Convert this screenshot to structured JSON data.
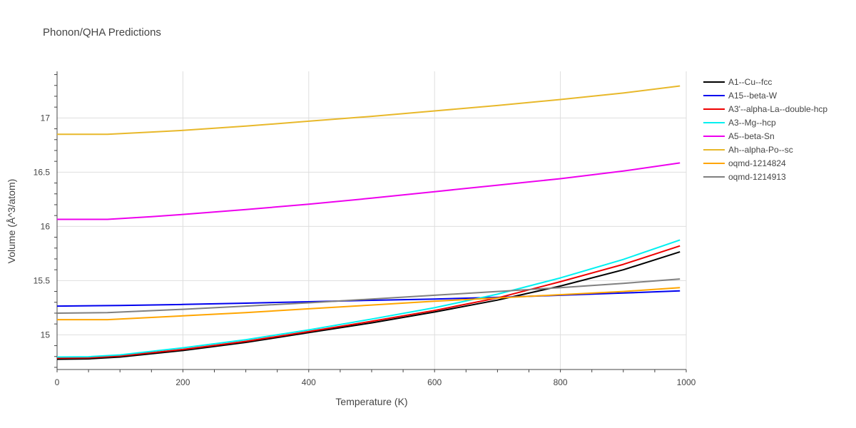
{
  "chart_data": {
    "type": "line",
    "title": "Phonon/QHA Predictions",
    "xlabel": "Temperature (K)",
    "ylabel": "Volume (Å^3/atom)",
    "xlim": [
      0,
      1000
    ],
    "ylim": [
      14.68,
      17.43
    ],
    "xticks": [
      0,
      200,
      400,
      600,
      800,
      1000
    ],
    "yticks": [
      15,
      15.5,
      16,
      16.5,
      17
    ],
    "grid": true,
    "legend_position": "top-right",
    "series": [
      {
        "name": "A1--Cu--fcc",
        "color": "#000000",
        "x": [
          0,
          50,
          100,
          200,
          300,
          400,
          500,
          600,
          700,
          800,
          900,
          990
        ],
        "y": [
          14.775,
          14.778,
          14.795,
          14.855,
          14.93,
          15.02,
          15.11,
          15.21,
          15.32,
          15.45,
          15.6,
          15.765
        ]
      },
      {
        "name": "A15--beta-W",
        "color": "#0000ee",
        "x": [
          0,
          100,
          200,
          300,
          400,
          500,
          600,
          700,
          800,
          900,
          990
        ],
        "y": [
          15.265,
          15.27,
          15.28,
          15.292,
          15.305,
          15.318,
          15.33,
          15.345,
          15.365,
          15.385,
          15.405
        ]
      },
      {
        "name": "A3'--alpha-La--double-hcp",
        "color": "#ee0000",
        "x": [
          0,
          50,
          100,
          200,
          300,
          400,
          500,
          600,
          700,
          800,
          900,
          990
        ],
        "y": [
          14.785,
          14.788,
          14.805,
          14.865,
          14.94,
          15.03,
          15.125,
          15.225,
          15.34,
          15.49,
          15.65,
          15.82
        ]
      },
      {
        "name": "A3--Mg--hcp",
        "color": "#00f0f0",
        "x": [
          0,
          50,
          100,
          200,
          300,
          400,
          500,
          600,
          700,
          800,
          900,
          990
        ],
        "y": [
          14.795,
          14.798,
          14.815,
          14.88,
          14.955,
          15.045,
          15.145,
          15.25,
          15.375,
          15.525,
          15.695,
          15.875
        ]
      },
      {
        "name": "A5--beta-Sn",
        "color": "#ee00ee",
        "x": [
          0,
          80,
          150,
          200,
          300,
          400,
          500,
          600,
          700,
          800,
          900,
          990
        ],
        "y": [
          16.065,
          16.065,
          16.09,
          16.11,
          16.155,
          16.205,
          16.26,
          16.32,
          16.38,
          16.44,
          16.51,
          16.585
        ]
      },
      {
        "name": "Ah--alpha-Po--sc",
        "color": "#e8b82a",
        "x": [
          0,
          80,
          150,
          200,
          300,
          400,
          500,
          600,
          700,
          800,
          900,
          990
        ],
        "y": [
          16.85,
          16.85,
          16.87,
          16.885,
          16.925,
          16.97,
          17.015,
          17.065,
          17.115,
          17.17,
          17.23,
          17.295
        ]
      },
      {
        "name": "oqmd-1214824",
        "color": "#ffa500",
        "x": [
          0,
          80,
          200,
          300,
          400,
          500,
          600,
          700,
          800,
          900,
          990
        ],
        "y": [
          15.14,
          15.14,
          15.175,
          15.205,
          15.24,
          15.275,
          15.31,
          15.34,
          15.37,
          15.4,
          15.435
        ]
      },
      {
        "name": "oqmd-1214913",
        "color": "#808080",
        "x": [
          0,
          80,
          200,
          300,
          400,
          500,
          600,
          700,
          800,
          900,
          990
        ],
        "y": [
          15.2,
          15.205,
          15.235,
          15.265,
          15.295,
          15.33,
          15.365,
          15.4,
          15.435,
          15.475,
          15.515
        ]
      }
    ]
  }
}
